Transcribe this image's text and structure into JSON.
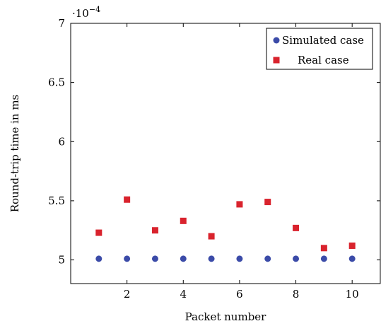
{
  "chart_data": {
    "type": "scatter",
    "title": "",
    "xlabel": "Packet number",
    "ylabel": "Round-trip time in ms",
    "xlim": [
      0,
      11
    ],
    "ylim": [
      4.8,
      7.0
    ],
    "xticks": [
      2,
      4,
      6,
      8,
      10
    ],
    "xtick_labels": [
      "2",
      "4",
      "6",
      "8",
      "10"
    ],
    "yticks": [
      5.0,
      5.5,
      6.0,
      6.5,
      7.0
    ],
    "ytick_labels": [
      "5",
      "5.5",
      "6",
      "6.5",
      "7"
    ],
    "y_scale_factor_base": "·10",
    "y_scale_factor_exponent": "−4",
    "grid": false,
    "legend_position": "top-right",
    "x": [
      1,
      2,
      3,
      4,
      5,
      6,
      7,
      8,
      9,
      10
    ],
    "series": [
      {
        "name": "Simulated case",
        "marker": "circle",
        "color": "#3b4ba8",
        "values": [
          5.01,
          5.01,
          5.01,
          5.01,
          5.01,
          5.01,
          5.01,
          5.01,
          5.01,
          5.01
        ]
      },
      {
        "name": "Real case",
        "marker": "square",
        "color": "#d9232d",
        "values": [
          5.23,
          5.51,
          5.25,
          5.33,
          5.2,
          5.47,
          5.49,
          5.27,
          5.1,
          5.12
        ]
      }
    ]
  }
}
